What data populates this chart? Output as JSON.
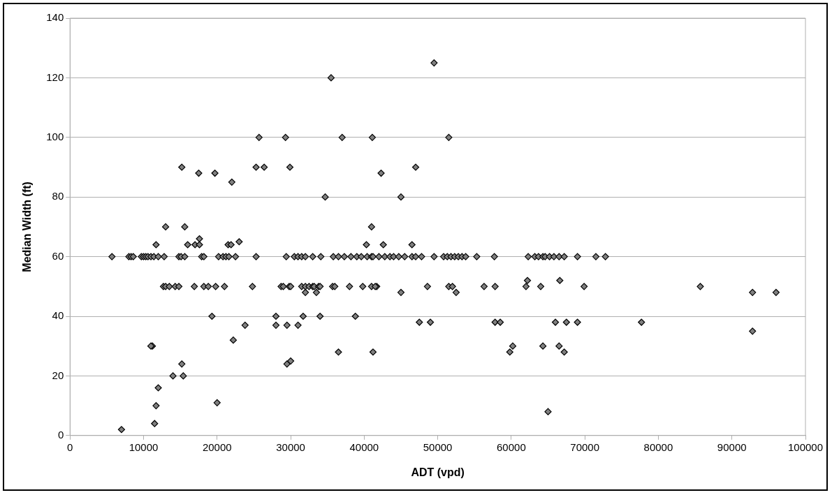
{
  "chart_data": {
    "type": "scatter",
    "xlabel": "ADT (vpd)",
    "ylabel": "Median Width (ft)",
    "xlim": [
      0,
      100000
    ],
    "xticks": [
      0,
      10000,
      20000,
      30000,
      40000,
      50000,
      60000,
      70000,
      80000,
      90000,
      100000
    ],
    "ylim": [
      0,
      140
    ],
    "yticks": [
      0,
      20,
      40,
      60,
      80,
      100,
      120,
      140
    ],
    "grid": "y",
    "marker": "diamond",
    "legend": false,
    "series": [
      {
        "color": "#808080",
        "x": [
          7000,
          11500,
          11700,
          12000,
          20000,
          65000,
          14000,
          15400,
          15200,
          30000,
          29500,
          36500,
          41200,
          59800,
          67200,
          11200,
          11000,
          60200,
          64300,
          66500,
          22200,
          92800,
          23800,
          28000,
          29500,
          31000,
          47500,
          49000,
          57800,
          58500,
          66000,
          67500,
          69000,
          77700,
          19300,
          28000,
          31700,
          34000,
          38800,
          32000,
          33500,
          45000,
          52500,
          92800,
          96000,
          12700,
          13000,
          13500,
          14300,
          14800,
          16900,
          18200,
          18800,
          19800,
          21000,
          24800,
          28700,
          29000,
          29800,
          30000,
          31500,
          32000,
          32500,
          33000,
          33200,
          33800,
          34000,
          35700,
          36000,
          38000,
          39800,
          41000,
          41700,
          41500,
          48600,
          51500,
          52000,
          56300,
          57800,
          62000,
          64000,
          69900,
          85700,
          62200,
          66600,
          5700,
          8000,
          8300,
          8600,
          9700,
          10000,
          10300,
          10600,
          11000,
          11400,
          12000,
          12800,
          14800,
          15100,
          15600,
          17900,
          18200,
          20200,
          20800,
          21200,
          21600,
          22500,
          25300,
          29400,
          30500,
          31000,
          31500,
          32000,
          33000,
          34100,
          35800,
          36500,
          37300,
          38200,
          39000,
          39600,
          40400,
          41000,
          41200,
          42000,
          42800,
          43500,
          44000,
          44700,
          45500,
          46500,
          47000,
          47800,
          49500,
          50800,
          51300,
          51800,
          52300,
          52800,
          53300,
          53800,
          55300,
          57700,
          62300,
          63200,
          63700,
          64300,
          64600,
          65200,
          65800,
          66500,
          67200,
          69000,
          71500,
          72800,
          11700,
          16000,
          17000,
          17600,
          21500,
          21900,
          40300,
          42600,
          46500,
          23000,
          17600,
          13000,
          15600,
          41000,
          34700,
          45000,
          22000,
          17500,
          19700,
          42300,
          15200,
          25300,
          26400,
          29900,
          47000,
          25700,
          29300,
          37000,
          41100,
          51500,
          35500,
          49500
        ],
        "values": [
          2,
          4,
          10,
          16,
          11,
          8,
          20,
          20,
          24,
          25,
          24,
          28,
          28,
          28,
          28,
          30,
          30,
          30,
          30,
          30,
          32,
          35,
          37,
          37,
          37,
          37,
          38,
          38,
          38,
          38,
          38,
          38,
          38,
          38,
          40,
          40,
          40,
          40,
          40,
          48,
          48,
          48,
          48,
          48,
          48,
          50,
          50,
          50,
          50,
          50,
          50,
          50,
          50,
          50,
          50,
          50,
          50,
          50,
          50,
          50,
          50,
          50,
          50,
          50,
          50,
          50,
          50,
          50,
          50,
          50,
          50,
          50,
          50,
          50,
          50,
          50,
          50,
          50,
          50,
          50,
          50,
          50,
          50,
          52,
          52,
          60,
          60,
          60,
          60,
          60,
          60,
          60,
          60,
          60,
          60,
          60,
          60,
          60,
          60,
          60,
          60,
          60,
          60,
          60,
          60,
          60,
          60,
          60,
          60,
          60,
          60,
          60,
          60,
          60,
          60,
          60,
          60,
          60,
          60,
          60,
          60,
          60,
          60,
          60,
          60,
          60,
          60,
          60,
          60,
          60,
          60,
          60,
          60,
          60,
          60,
          60,
          60,
          60,
          60,
          60,
          60,
          60,
          60,
          60,
          60,
          60,
          60,
          60,
          60,
          60,
          60,
          60,
          60,
          60,
          60,
          64,
          64,
          64,
          64,
          64,
          64,
          64,
          64,
          64,
          65,
          66,
          70,
          70,
          70,
          80,
          80,
          85,
          88,
          88,
          88,
          90,
          90,
          90,
          90,
          90,
          100,
          100,
          100,
          100,
          100,
          120,
          125
        ]
      }
    ]
  }
}
